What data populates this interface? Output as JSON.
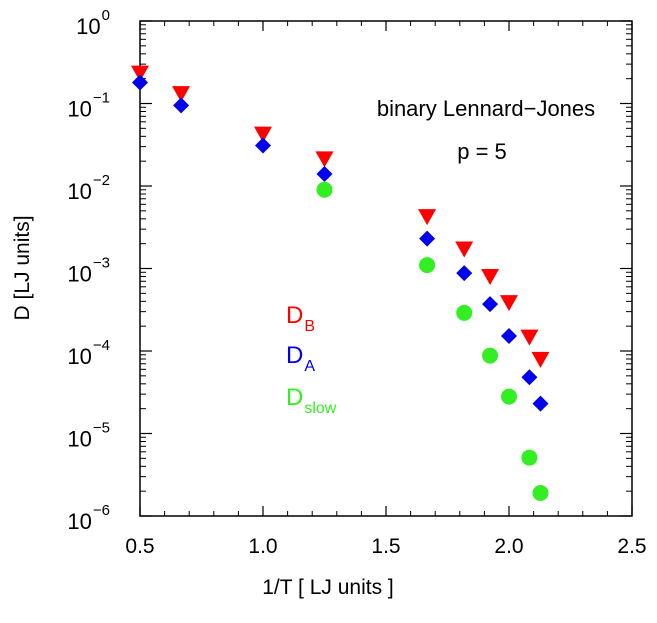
{
  "chart_data": {
    "type": "scatter",
    "title": "",
    "xlabel": "1/T [ LJ units ]",
    "ylabel": "D [LJ units]",
    "xlim": [
      0.5,
      2.5
    ],
    "ylim": [
      1e-06,
      1
    ],
    "yscale": "log",
    "grid": false,
    "x_ticks": [
      0.5,
      1.0,
      1.5,
      2.0,
      2.5
    ],
    "x_tick_labels": [
      "0.5",
      "1.0",
      "1.5",
      "2.0",
      "2.5"
    ],
    "y_ticks": [
      {
        "base": "10",
        "exp": "0",
        "value": 1
      },
      {
        "base": "10",
        "exp": "−1",
        "value": 0.1
      },
      {
        "base": "10",
        "exp": "−2",
        "value": 0.01
      },
      {
        "base": "10",
        "exp": "−3",
        "value": 0.001
      },
      {
        "base": "10",
        "exp": "−4",
        "value": 0.0001
      },
      {
        "base": "10",
        "exp": "−5",
        "value": 1e-05
      },
      {
        "base": "10",
        "exp": "−6",
        "value": 1e-06
      }
    ],
    "annotations": [
      {
        "id": "system",
        "text": "binary Lennard−Jones"
      },
      {
        "id": "pressure",
        "text": "p = 5"
      }
    ],
    "legend_placement": "center-left",
    "series": [
      {
        "name": "D",
        "subscript": "B",
        "marker": "triangle-down",
        "color": "#ff0000",
        "x": [
          0.5,
          0.667,
          1.0,
          1.25,
          1.667,
          1.818,
          1.923,
          2.0,
          2.083,
          2.128
        ],
        "y": [
          0.23,
          0.13,
          0.042,
          0.021,
          0.0042,
          0.0017,
          0.00079,
          0.00038,
          0.000145,
          7.8e-05
        ]
      },
      {
        "name": "D",
        "subscript": "A",
        "marker": "diamond",
        "color": "#0000ee",
        "x": [
          0.5,
          0.667,
          1.0,
          1.25,
          1.667,
          1.818,
          1.923,
          2.0,
          2.083,
          2.128
        ],
        "y": [
          0.18,
          0.095,
          0.031,
          0.014,
          0.0023,
          0.00088,
          0.00037,
          0.000152,
          4.8e-05,
          2.3e-05
        ]
      },
      {
        "name": "D",
        "subscript": "slow",
        "marker": "circle",
        "color": "#33ee22",
        "x": [
          1.25,
          1.667,
          1.818,
          1.923,
          2.0,
          2.083,
          2.128
        ],
        "y": [
          0.009,
          0.0011,
          0.00029,
          8.8e-05,
          2.8e-05,
          5.1e-06,
          1.9e-06
        ]
      }
    ]
  }
}
